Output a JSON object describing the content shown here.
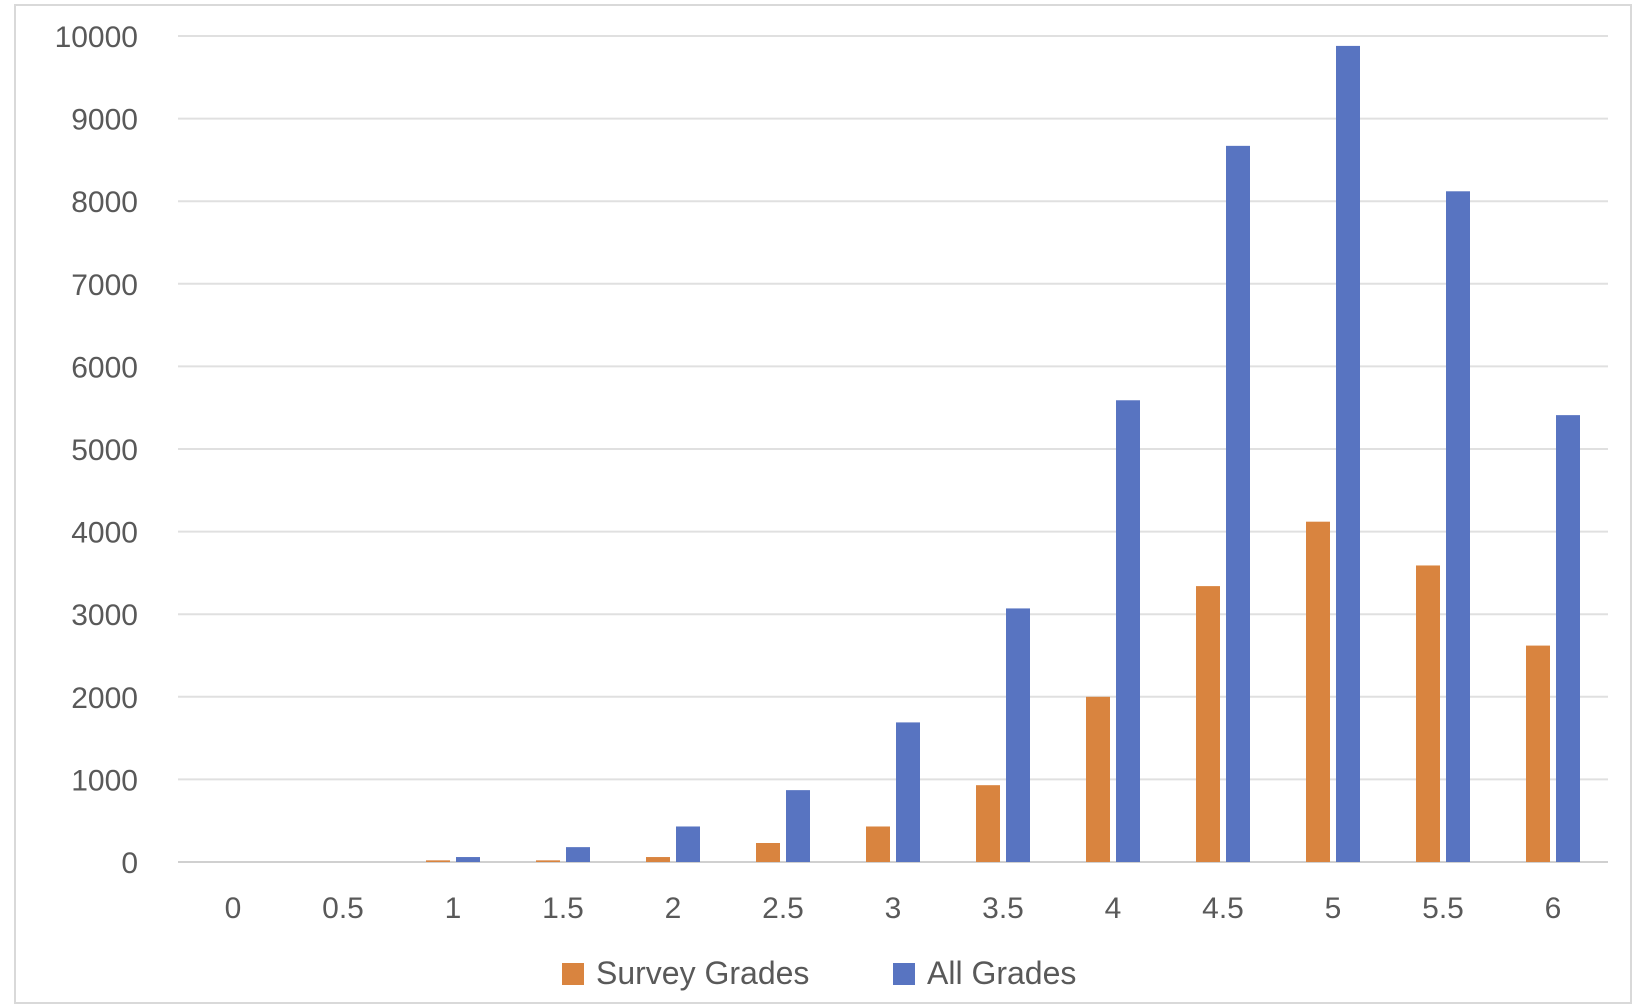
{
  "chart_data": {
    "type": "bar",
    "categories": [
      "0",
      "0.5",
      "1",
      "1.5",
      "2",
      "2.5",
      "3",
      "3.5",
      "4",
      "4.5",
      "5",
      "5.5",
      "6"
    ],
    "series": [
      {
        "name": "Survey Grades",
        "color": "#d9843f",
        "values": [
          0,
          0,
          20,
          20,
          60,
          230,
          430,
          930,
          2000,
          3340,
          4120,
          3590,
          2620
        ]
      },
      {
        "name": "All Grades",
        "color": "#5874c1",
        "values": [
          0,
          0,
          60,
          180,
          430,
          870,
          1690,
          3070,
          5590,
          8670,
          9880,
          8120,
          5410
        ]
      }
    ],
    "yticks": [
      "0",
      "1000",
      "2000",
      "3000",
      "4000",
      "5000",
      "6000",
      "7000",
      "8000",
      "9000",
      "10000"
    ],
    "ylim": [
      0,
      10000
    ],
    "grid": true,
    "legend_position": "bottom-center",
    "title": "",
    "xlabel": "",
    "ylabel": ""
  }
}
